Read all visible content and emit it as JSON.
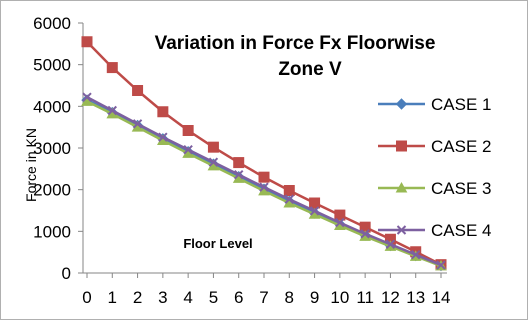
{
  "chart_data": {
    "type": "line",
    "title": "Variation in Force Fx Floorwise",
    "subtitle": "Zone V",
    "xlabel": "Floor Level",
    "ylabel": "Force in KN",
    "categories": [
      "0",
      "1",
      "2",
      "3",
      "4",
      "5",
      "6",
      "7",
      "8",
      "9",
      "10",
      "11",
      "12",
      "13",
      "14"
    ],
    "ylim": [
      0,
      6000
    ],
    "yticks": [
      0,
      1000,
      2000,
      3000,
      4000,
      5000,
      6000
    ],
    "grid": false,
    "legend_position": "right",
    "series": [
      {
        "name": "CASE 1",
        "color": "#4A7EBB",
        "marker": "diamond",
        "values": [
          4150,
          3850,
          3540,
          3220,
          2910,
          2610,
          2310,
          2010,
          1720,
          1440,
          1170,
          910,
          660,
          420,
          180
        ]
      },
      {
        "name": "CASE 2",
        "color": "#BE4B48",
        "marker": "square",
        "values": [
          5550,
          4930,
          4380,
          3870,
          3420,
          3020,
          2650,
          2300,
          1980,
          1680,
          1390,
          1100,
          810,
          510,
          200
        ]
      },
      {
        "name": "CASE 3",
        "color": "#98B954",
        "marker": "triangle",
        "values": [
          4120,
          3820,
          3500,
          3180,
          2870,
          2570,
          2270,
          1970,
          1680,
          1410,
          1140,
          880,
          640,
          400,
          170
        ]
      },
      {
        "name": "CASE 4",
        "color": "#7D60A0",
        "marker": "x",
        "values": [
          4220,
          3900,
          3580,
          3260,
          2960,
          2660,
          2360,
          2060,
          1770,
          1490,
          1210,
          940,
          690,
          440,
          190
        ]
      }
    ]
  }
}
